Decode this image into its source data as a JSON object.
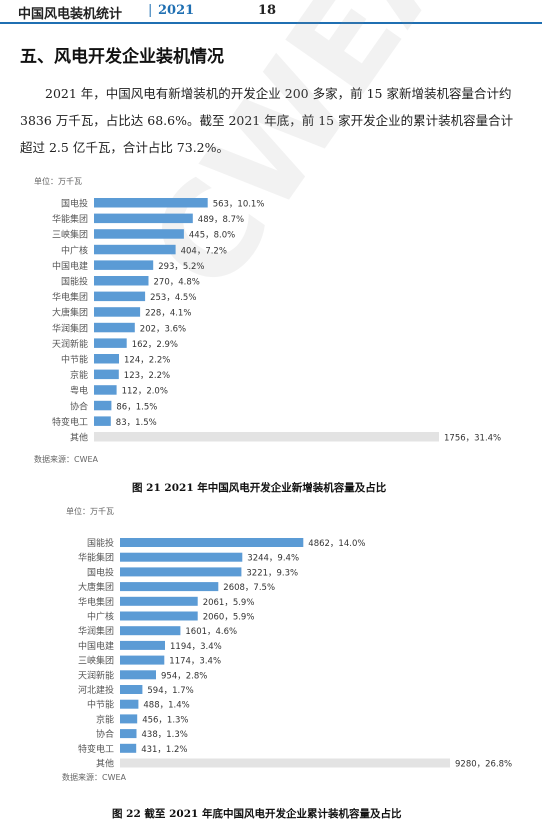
{
  "header": {
    "title": "中国风电装机统计",
    "separator": "|",
    "year": "2021",
    "page": "18"
  },
  "section_title": "五、风电开发企业装机情况",
  "paragraph": "2021 年，中国风电有新增装机的开发企业 200 多家，前 15 家新增装机容量合计约 3836 万千瓦，占比达 68.6%。截至 2021 年底，前 15 家开发企业的累计装机容量合计超过 2.5 亿千瓦，合计占比 73.2%。",
  "watermark": "CWEA",
  "colors": {
    "bar": "#5b9bd5",
    "other_bar": "#e3e3e3",
    "accent": "#1f6fb2"
  },
  "chart_data": [
    {
      "type": "bar",
      "orientation": "horizontal",
      "unit_label": "单位：万千瓦",
      "source": "数据来源：CWEA",
      "caption": "图 21   2021 年中国风电开发企业新增装机容量及占比",
      "categories": [
        "国电投",
        "华能集团",
        "三峡集团",
        "中广核",
        "中国电建",
        "国能投",
        "华电集团",
        "大唐集团",
        "华润集团",
        "天润新能",
        "中节能",
        "京能",
        "粤电",
        "协合",
        "特变电工",
        "其他"
      ],
      "values": [
        563,
        489,
        445,
        404,
        293,
        270,
        253,
        228,
        202,
        162,
        124,
        123,
        112,
        86,
        83,
        1756
      ],
      "labels": [
        "563，10.1%",
        "489，8.7%",
        "445，8.0%",
        "404，7.2%",
        "293，5.2%",
        "270，4.8%",
        "253，4.5%",
        "228，4.1%",
        "202，3.6%",
        "162，2.9%",
        "124，2.2%",
        "123，2.2%",
        "112，2.0%",
        "86，1.5%",
        "83，1.5%",
        "1756，31.4%"
      ]
    },
    {
      "type": "bar",
      "orientation": "horizontal",
      "unit_label": "单位：万千瓦",
      "source": "数据来源：CWEA",
      "caption": "图 22   截至 2021 年底中国风电开发企业累计装机容量及占比",
      "categories": [
        "国能投",
        "华能集团",
        "国电投",
        "大唐集团",
        "华电集团",
        "中广核",
        "华润集团",
        "中国电建",
        "三峡集团",
        "天润新能",
        "河北建投",
        "中节能",
        "京能",
        "协合",
        "特变电工",
        "其他"
      ],
      "values": [
        4862,
        3244,
        3221,
        2608,
        2061,
        2060,
        1601,
        1194,
        1174,
        954,
        594,
        488,
        456,
        438,
        431,
        9280
      ],
      "labels": [
        "4862，14.0%",
        "3244，9.4%",
        "3221，9.3%",
        "2608，7.5%",
        "2061，5.9%",
        "2060，5.9%",
        "1601，4.6%",
        "1194，3.4%",
        "1174，3.4%",
        "954，2.8%",
        "594，1.7%",
        "488，1.4%",
        "456，1.3%",
        "438，1.3%",
        "431，1.2%",
        "9280，26.8%"
      ]
    }
  ]
}
